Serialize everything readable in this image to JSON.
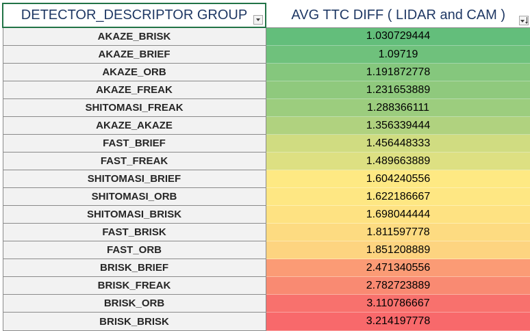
{
  "headers": {
    "group": "DETECTOR_DESCRIPTOR GROUP",
    "avg": "AVG TTC DIFF ( LIDAR and CAM )"
  },
  "icons": {
    "group_filter": "filter-dropdown-icon",
    "avg_filter": "sorted-filter-dropdown-icon"
  },
  "rows": [
    {
      "name": "AKAZE_BRISK",
      "value": "1.030729444",
      "color": "#63be7b"
    },
    {
      "name": "AKAZE_BRIEF",
      "value": "1.09719",
      "color": "#6fc17c"
    },
    {
      "name": "AKAZE_ORB",
      "value": "1.191872778",
      "color": "#85c77d"
    },
    {
      "name": "AKAZE_FREAK",
      "value": "1.231653889",
      "color": "#8fc97d"
    },
    {
      "name": "SHITOMASI_FREAK",
      "value": "1.288366111",
      "color": "#9ccd7e"
    },
    {
      "name": "AKAZE_AKAZE",
      "value": "1.356339444",
      "color": "#b0d27f"
    },
    {
      "name": "FAST_BRIEF",
      "value": "1.456448333",
      "color": "#d0dc81"
    },
    {
      "name": "FAST_FREAK",
      "value": "1.489663889",
      "color": "#dde082"
    },
    {
      "name": "SHITOMASI_BRIEF",
      "value": "1.604240556",
      "color": "#fee983"
    },
    {
      "name": "SHITOMASI_ORB",
      "value": "1.622186667",
      "color": "#fee783"
    },
    {
      "name": "SHITOMASI_BRISK",
      "value": "1.698044444",
      "color": "#fee282"
    },
    {
      "name": "FAST_BRISK",
      "value": "1.811597778",
      "color": "#fddb81"
    },
    {
      "name": "FAST_ORB",
      "value": "1.851208889",
      "color": "#fdd480"
    },
    {
      "name": "BRISK_BRIEF",
      "value": "2.471340556",
      "color": "#fb9b75"
    },
    {
      "name": "BRISK_FREAK",
      "value": "2.782723889",
      "color": "#f98a72"
    },
    {
      "name": "BRISK_ORB",
      "value": "3.110786667",
      "color": "#f8716d"
    },
    {
      "name": "BRISK_BRISK",
      "value": "3.214197778",
      "color": "#f8696b"
    }
  ]
}
